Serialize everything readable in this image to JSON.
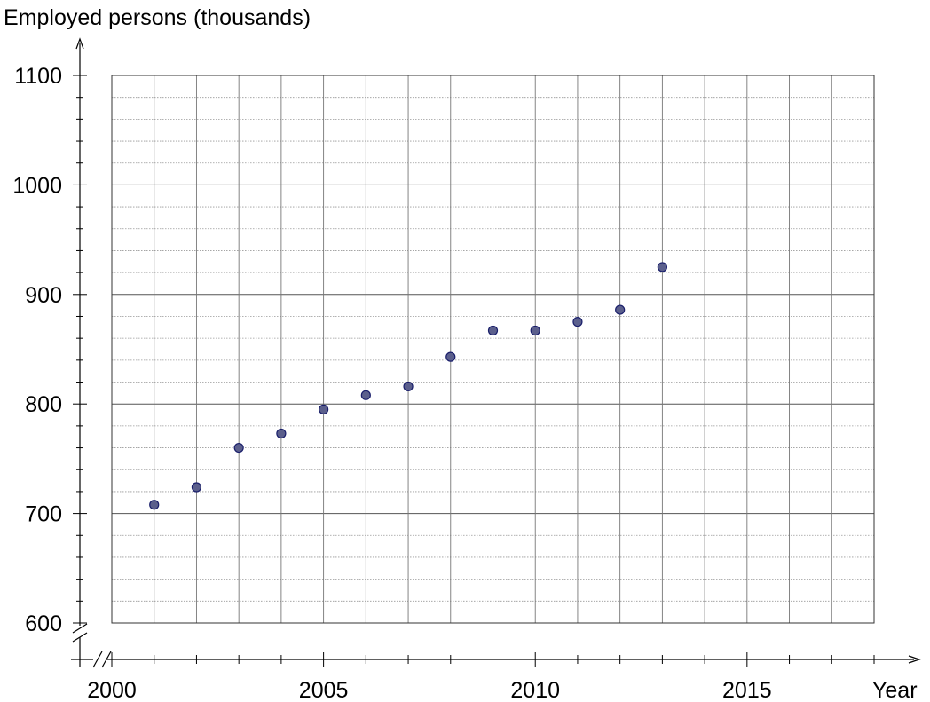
{
  "chart_data": {
    "type": "scatter",
    "title": "",
    "ylabel": "Employed persons (thousands)",
    "xlabel": "Year",
    "x": [
      2001,
      2002,
      2003,
      2004,
      2005,
      2006,
      2007,
      2008,
      2009,
      2010,
      2011,
      2012,
      2013
    ],
    "y": [
      708,
      724,
      760,
      773,
      795,
      808,
      816,
      843,
      867,
      867,
      875,
      886,
      925
    ],
    "xlim": [
      2000,
      2018
    ],
    "ylim": [
      600,
      1100
    ],
    "x_ticks_labeled": [
      2000,
      2005,
      2010,
      2015
    ],
    "y_ticks_labeled": [
      600,
      700,
      800,
      900,
      1000,
      1100
    ],
    "x_tick_labels": [
      "2000",
      "2005",
      "2010",
      "2015"
    ],
    "y_tick_labels": [
      "600",
      "700",
      "800",
      "900",
      "1000",
      "1100"
    ],
    "grid": true,
    "axis_breaks": true,
    "marker_color": "#5b5f8c",
    "marker_edge": "#1a1f6b"
  }
}
